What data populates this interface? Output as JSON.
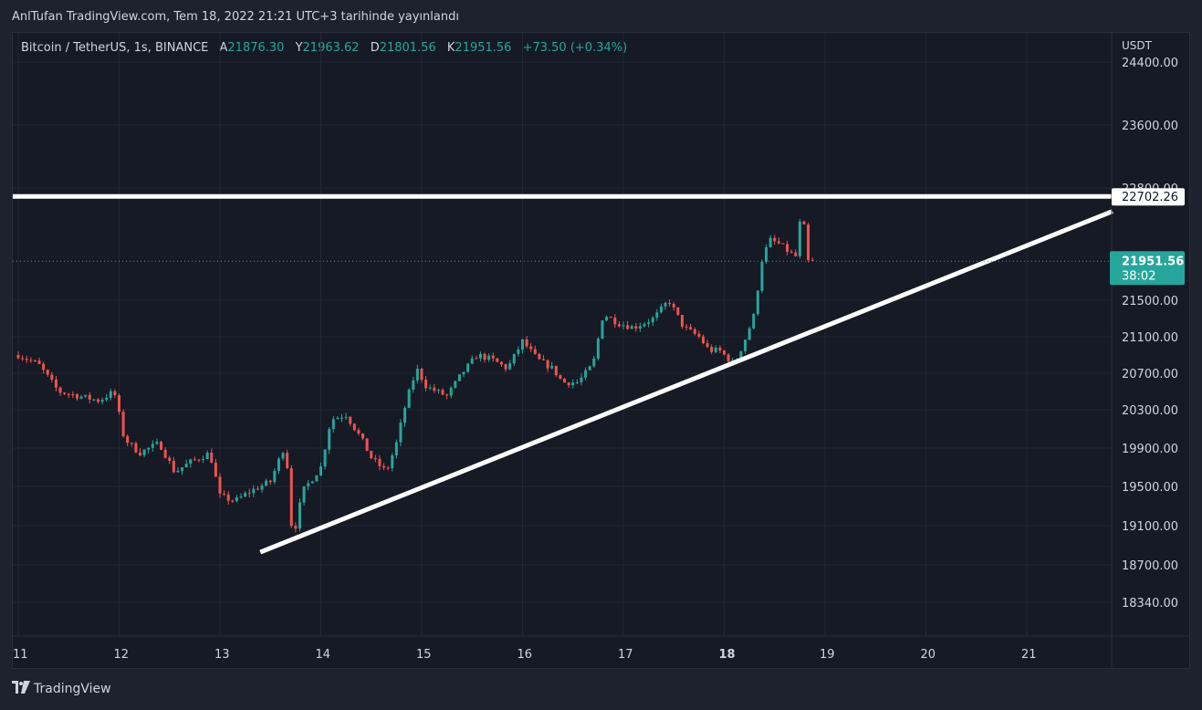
{
  "publication": "AnlTufan TradingView.com, Tem 18, 2022 21:21 UTC+3 tarihinde yayınlandı",
  "header": {
    "symbol": "Bitcoin / TetherUS, 1s, BINANCE",
    "open_label": "A",
    "open": "21876.30",
    "high_label": "Y",
    "high": "21963.62",
    "low_label": "D",
    "low": "21801.56",
    "close_label": "K",
    "close": "21951.56",
    "change": "+73.50 (+0.34%)"
  },
  "currency": "USDT",
  "footer": {
    "logo_icon": "tradingview-logo-icon",
    "brand": "TradingView"
  },
  "colors": {
    "up": "#26a69a",
    "down": "#ef5350",
    "background": "#161a25",
    "grid": "#232733",
    "line": "#ffffff"
  },
  "chart_data": {
    "type": "candlestick",
    "title": "",
    "xlabel": "",
    "ylabel": "",
    "price_ticks": [
      24400,
      23600,
      22800,
      21500,
      21100,
      20700,
      20300,
      19900,
      19500,
      19100,
      18700,
      18340
    ],
    "price_tick_labels": [
      "24400.00",
      "23600.00",
      "22800.00",
      "21500.00",
      "21100.00",
      "20700.00",
      "20300.00",
      "19900.00",
      "19500.00",
      "19100.00",
      "18700.00",
      "18340.00"
    ],
    "date_ticks": [
      11,
      12,
      13,
      14,
      15,
      16,
      17,
      18,
      19,
      20,
      21
    ],
    "date_tick_labels": [
      "11",
      "12",
      "13",
      "14",
      "15",
      "16",
      "17",
      "18",
      "19",
      "20",
      "21"
    ],
    "x_range": [
      11,
      21.9
    ],
    "grid": true,
    "resistance_level": {
      "value": 22702.26,
      "label": "22702.26"
    },
    "current_price": {
      "value": 21951.56,
      "label": "21951.56",
      "countdown": "38:02"
    },
    "trendline": {
      "from": {
        "day": 13.4,
        "price": 18830
      },
      "to": {
        "day": 21.85,
        "price": 22530
      }
    },
    "close_anchors": [
      [
        11.0,
        20900
      ],
      [
        11.2,
        20800
      ],
      [
        11.4,
        20500
      ],
      [
        11.6,
        20450
      ],
      [
        11.8,
        20400
      ],
      [
        11.95,
        20500
      ],
      [
        12.05,
        20000
      ],
      [
        12.2,
        19850
      ],
      [
        12.4,
        19950
      ],
      [
        12.55,
        19650
      ],
      [
        12.7,
        19750
      ],
      [
        12.9,
        19850
      ],
      [
        13.0,
        19400
      ],
      [
        13.15,
        19350
      ],
      [
        13.3,
        19450
      ],
      [
        13.5,
        19550
      ],
      [
        13.65,
        19950
      ],
      [
        13.72,
        18950
      ],
      [
        13.82,
        19450
      ],
      [
        14.0,
        19700
      ],
      [
        14.1,
        20200
      ],
      [
        14.25,
        20250
      ],
      [
        14.4,
        20000
      ],
      [
        14.5,
        19800
      ],
      [
        14.65,
        19650
      ],
      [
        14.75,
        19950
      ],
      [
        14.85,
        20400
      ],
      [
        14.95,
        20750
      ],
      [
        15.05,
        20550
      ],
      [
        15.25,
        20450
      ],
      [
        15.4,
        20700
      ],
      [
        15.55,
        20900
      ],
      [
        15.7,
        20850
      ],
      [
        15.85,
        20750
      ],
      [
        16.0,
        21050
      ],
      [
        16.15,
        20850
      ],
      [
        16.3,
        20750
      ],
      [
        16.4,
        20600
      ],
      [
        16.55,
        20600
      ],
      [
        16.7,
        20800
      ],
      [
        16.8,
        21350
      ],
      [
        16.95,
        21250
      ],
      [
        17.1,
        21200
      ],
      [
        17.3,
        21300
      ],
      [
        17.45,
        21500
      ],
      [
        17.6,
        21200
      ],
      [
        17.75,
        21100
      ],
      [
        17.85,
        20950
      ],
      [
        17.95,
        20950
      ],
      [
        18.1,
        20800
      ],
      [
        18.2,
        21050
      ],
      [
        18.3,
        21350
      ],
      [
        18.37,
        21950
      ],
      [
        18.45,
        22200
      ],
      [
        18.55,
        22150
      ],
      [
        18.65,
        22050
      ],
      [
        18.72,
        22000
      ],
      [
        18.77,
        22650
      ],
      [
        18.82,
        21950
      ],
      [
        18.87,
        21950
      ]
    ]
  }
}
